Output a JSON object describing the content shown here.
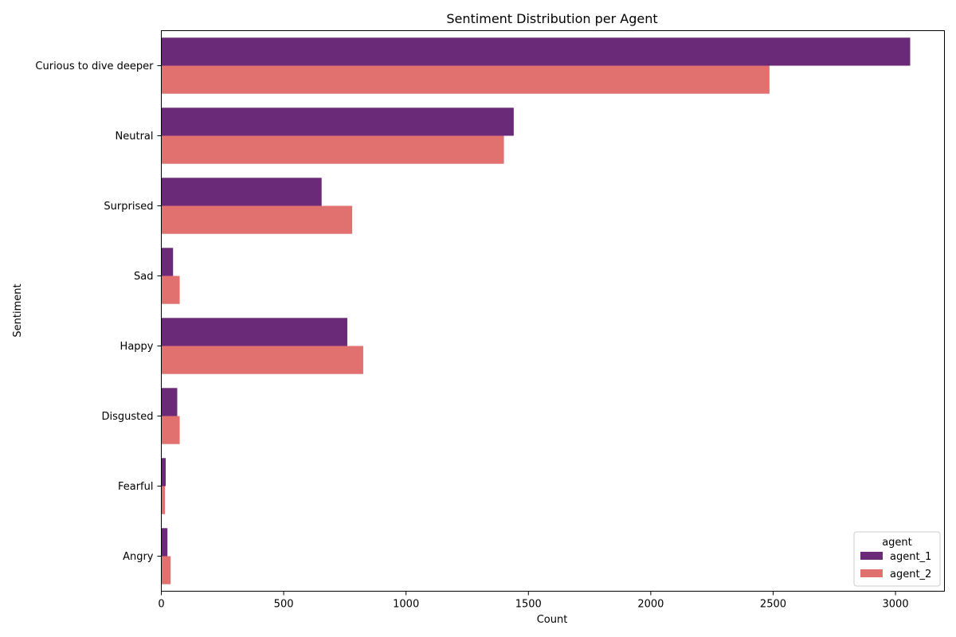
{
  "chart_data": {
    "type": "bar",
    "orientation": "horizontal",
    "title": "Sentiment Distribution per Agent",
    "xlabel": "Count",
    "ylabel": "Sentiment",
    "categories": [
      "Curious to dive deeper",
      "Neutral",
      "Surprised",
      "Sad",
      "Happy",
      "Disgusted",
      "Fearful",
      "Angry"
    ],
    "series": [
      {
        "name": "agent_1",
        "color": "#6a2a77",
        "values": [
          3060,
          1440,
          655,
          48,
          760,
          65,
          18,
          25
        ]
      },
      {
        "name": "agent_2",
        "color": "#e1716f",
        "values": [
          2485,
          1400,
          780,
          75,
          825,
          75,
          15,
          38
        ]
      }
    ],
    "xlim": [
      0,
      3200
    ],
    "xticks": [
      0,
      500,
      1000,
      1500,
      2000,
      2500,
      3000
    ],
    "grid": false,
    "legend": {
      "title": "agent",
      "placement": "lower-right"
    }
  }
}
